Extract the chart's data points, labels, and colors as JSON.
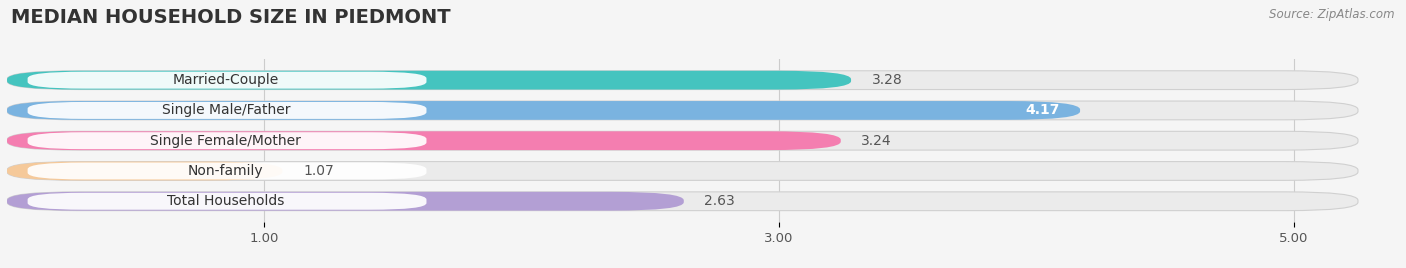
{
  "title": "MEDIAN HOUSEHOLD SIZE IN PIEDMONT",
  "source": "Source: ZipAtlas.com",
  "categories": [
    "Married-Couple",
    "Single Male/Father",
    "Single Female/Mother",
    "Non-family",
    "Total Households"
  ],
  "values": [
    3.28,
    4.17,
    3.24,
    1.07,
    2.63
  ],
  "bar_colors": [
    "#45c4bf",
    "#7ab3e0",
    "#f47eb0",
    "#f5c99a",
    "#b39fd4"
  ],
  "label_bg_colors": [
    "#ffffff",
    "#ffffff",
    "#ffffff",
    "#ffffff",
    "#ffffff"
  ],
  "value_in_bar": [
    false,
    true,
    false,
    false,
    false
  ],
  "xlim_left": 0.0,
  "xlim_right": 5.3,
  "xstart": 0.0,
  "xticks": [
    1.0,
    3.0,
    5.0
  ],
  "xtick_labels": [
    "1.00",
    "3.00",
    "5.00"
  ],
  "title_fontsize": 14,
  "label_fontsize": 10,
  "value_fontsize": 10,
  "background_color": "#f5f5f5",
  "bar_bg_color": "#e8e8e8",
  "bar_height": 0.62,
  "bar_spacing": 1.0
}
